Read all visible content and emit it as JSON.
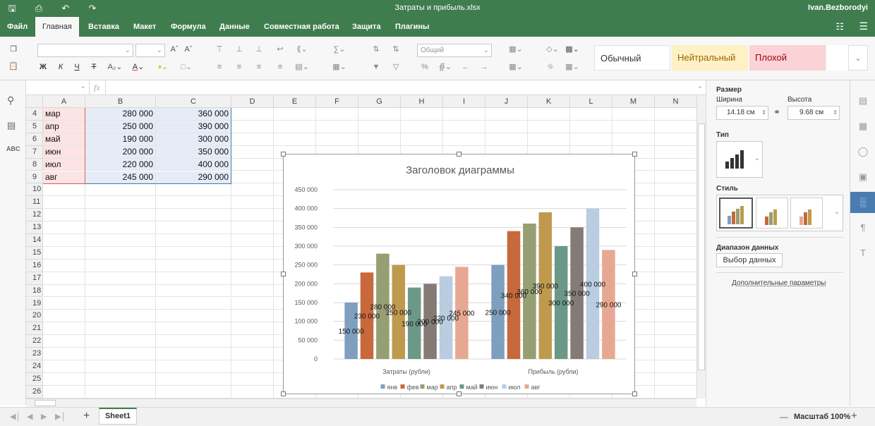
{
  "window": {
    "title": "Затраты и прибыль.xlsx",
    "user": "Ivan.Bezborodyi"
  },
  "menu": {
    "tabs": [
      "Файл",
      "Главная",
      "Вставка",
      "Макет",
      "Формула",
      "Данные",
      "Совместная работа",
      "Защита",
      "Плагины"
    ],
    "active_tab": "Главная"
  },
  "toolbar": {
    "number_format": "Общий",
    "styles": [
      {
        "label": "Обычный",
        "bg": "#ffffff",
        "color": "#333333"
      },
      {
        "label": "Нейтральный",
        "bg": "#fdf1c5",
        "color": "#9c6500"
      },
      {
        "label": "Плохой",
        "bg": "#fbd2d6",
        "color": "#9c0006"
      }
    ]
  },
  "formula_bar": {
    "fx": "fx",
    "value": ""
  },
  "columns": [
    "A",
    "B",
    "C",
    "D",
    "E",
    "F",
    "G",
    "H",
    "I",
    "J",
    "K",
    "L",
    "M",
    "N"
  ],
  "rows": [
    {
      "n": "4",
      "a": "мар",
      "b": "280 000",
      "c": "360 000"
    },
    {
      "n": "5",
      "a": "апр",
      "b": "250 000",
      "c": "390 000"
    },
    {
      "n": "6",
      "a": "май",
      "b": "190 000",
      "c": "300 000"
    },
    {
      "n": "7",
      "a": "июн",
      "b": "200 000",
      "c": "350 000"
    },
    {
      "n": "8",
      "a": "июл",
      "b": "220 000",
      "c": "400 000"
    },
    {
      "n": "9",
      "a": "авг",
      "b": "245 000",
      "c": "290 000"
    },
    {
      "n": "10"
    },
    {
      "n": "11"
    },
    {
      "n": "12"
    },
    {
      "n": "13"
    },
    {
      "n": "14"
    },
    {
      "n": "15"
    },
    {
      "n": "16"
    },
    {
      "n": "17"
    },
    {
      "n": "18"
    },
    {
      "n": "19"
    },
    {
      "n": "20"
    },
    {
      "n": "21"
    },
    {
      "n": "22"
    },
    {
      "n": "23"
    },
    {
      "n": "24"
    },
    {
      "n": "25"
    },
    {
      "n": "26"
    }
  ],
  "chart_data": {
    "type": "bar",
    "title": "Заголовок диаграммы",
    "categories": [
      "Затраты (рубли)",
      "Прибыль (рубли)"
    ],
    "series": [
      {
        "name": "янв",
        "values": [
          150000,
          250000
        ],
        "labels": [
          "150 000",
          "250 000"
        ],
        "color": "#7f9fbf"
      },
      {
        "name": "фев",
        "values": [
          230000,
          340000
        ],
        "labels": [
          "230 000",
          "340 000"
        ],
        "color": "#c7693b"
      },
      {
        "name": "мар",
        "values": [
          280000,
          360000
        ],
        "labels": [
          "280 000",
          "360 000"
        ],
        "color": "#969e73"
      },
      {
        "name": "апр",
        "values": [
          250000,
          390000
        ],
        "labels": [
          "250 000",
          "390 000"
        ],
        "color": "#bf9a4e"
      },
      {
        "name": "май",
        "values": [
          190000,
          300000
        ],
        "labels": [
          "190 000",
          "300 000"
        ],
        "color": "#6c9887"
      },
      {
        "name": "июн",
        "values": [
          200000,
          350000
        ],
        "labels": [
          "200 000",
          "350 000"
        ],
        "color": "#857b76"
      },
      {
        "name": "июл",
        "values": [
          220000,
          400000
        ],
        "labels": [
          "220 000",
          "400 000"
        ],
        "color": "#b9cce0"
      },
      {
        "name": "авг",
        "values": [
          245000,
          290000
        ],
        "labels": [
          "245 000",
          "290 000"
        ],
        "color": "#e7a893"
      }
    ],
    "ylim": [
      0,
      450000
    ],
    "yticks": [
      "0",
      "50 000",
      "100 000",
      "150 000",
      "200 000",
      "250 000",
      "300 000",
      "350 000",
      "400 000",
      "450 000"
    ],
    "legend": "bottom",
    "grid": true
  },
  "panel": {
    "size_label": "Размер",
    "width_label": "Ширина",
    "height_label": "Высота",
    "width_value": "14.18 см",
    "height_value": "9.68 см",
    "type_label": "Тип",
    "style_label": "Стиль",
    "range_label": "Диапазон данных",
    "range_button": "Выбор данных",
    "more_link": "Дополнительные параметры"
  },
  "statusbar": {
    "sheet": "Sheet1",
    "zoom": "Масштаб 100%"
  }
}
